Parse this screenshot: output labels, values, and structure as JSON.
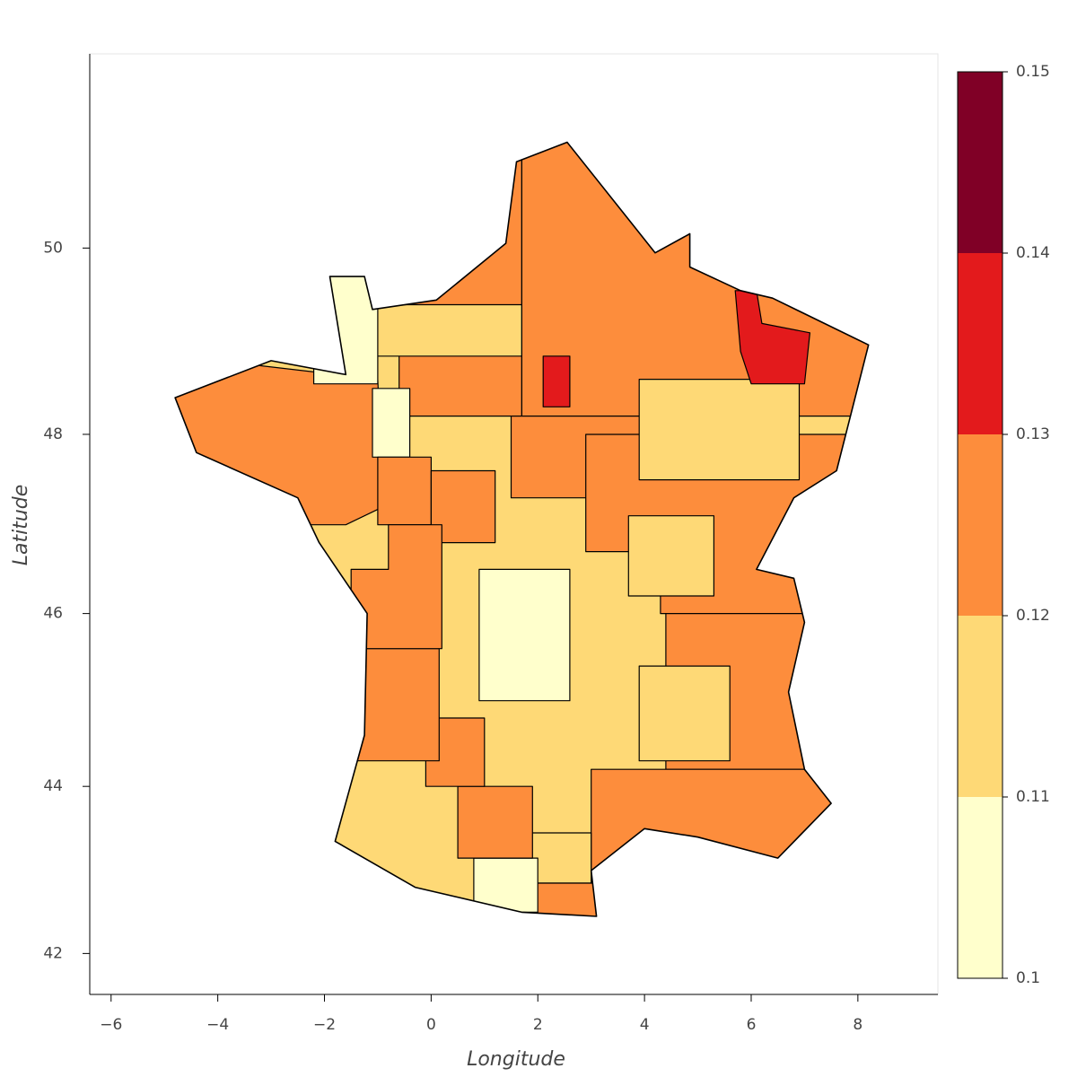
{
  "chart_data": {
    "type": "choropleth",
    "projection": "mercator",
    "xlabel": "Longitude",
    "ylabel": "Latitude",
    "xlim": [
      -6.4,
      9.5
    ],
    "ylim": [
      41.5,
      52.0
    ],
    "xticks": [
      {
        "value": -6,
        "label": "−6"
      },
      {
        "value": -4,
        "label": "−4"
      },
      {
        "value": -2,
        "label": "−2"
      },
      0,
      2,
      4,
      6,
      8
    ],
    "yticks": [
      42,
      44,
      46,
      48,
      50
    ],
    "values": [
      0.115,
      0.125,
      0.125,
      0.115,
      0.105,
      0.105,
      0.125,
      0.125,
      0.125,
      0.125,
      0.125,
      0.115,
      0.115,
      0.135,
      0.135,
      0.125,
      0.115,
      0.125,
      0.115,
      0.125,
      0.105,
      0.125,
      0.125,
      0.125,
      0.125,
      0.105
    ],
    "edge_color": "#000000",
    "colorbar": {
      "ticks": [
        0.1,
        0.11,
        0.12,
        0.13,
        0.14,
        0.15
      ],
      "colors": [
        "#ffffcc",
        "#fed976",
        "#fd8d3c",
        "#e31a1c",
        "#800026"
      ]
    }
  }
}
